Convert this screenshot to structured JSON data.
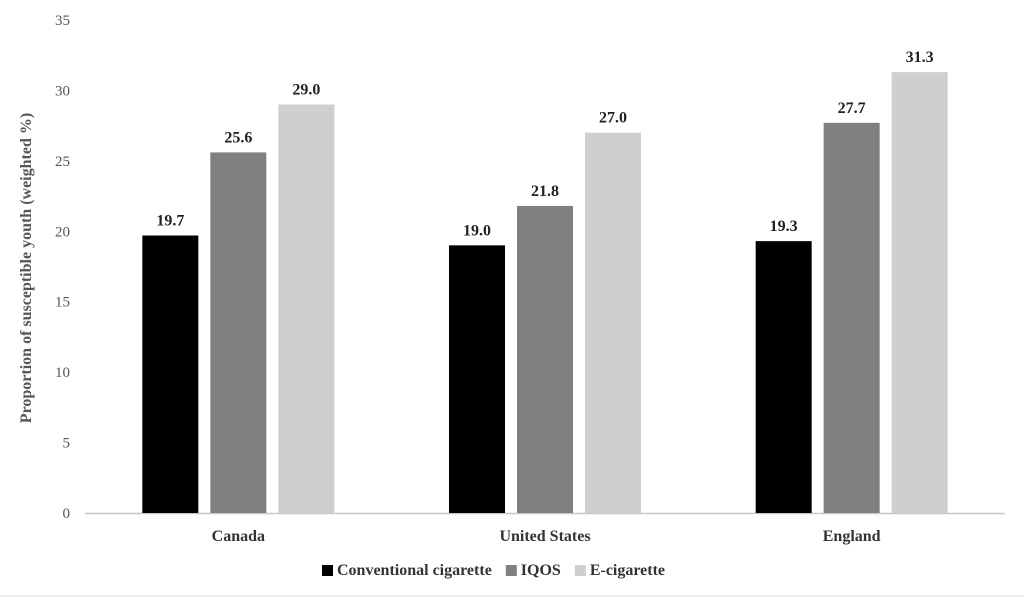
{
  "chart_data": {
    "type": "bar",
    "title": "",
    "xlabel": "",
    "ylabel": "Proportion of susceptible youth (weighted %)",
    "ylim": [
      0,
      35
    ],
    "yticks": [
      0,
      5,
      10,
      15,
      20,
      25,
      30,
      35
    ],
    "grid": false,
    "legend_position": "bottom",
    "categories": [
      "Canada",
      "United States",
      "England"
    ],
    "series": [
      {
        "name": "Conventional cigarette",
        "color": "#000000",
        "values": [
          19.7,
          19.0,
          19.3
        ],
        "labels": [
          "19.7",
          "19.0",
          "19.3"
        ]
      },
      {
        "name": "IQOS",
        "color": "#808080",
        "values": [
          25.6,
          21.8,
          27.7
        ],
        "labels": [
          "25.6",
          "21.8",
          "27.7"
        ]
      },
      {
        "name": "E-cigarette",
        "color": "#d0cece",
        "values": [
          29.0,
          27.0,
          31.3
        ],
        "labels": [
          "29.0",
          "27.0",
          "31.3"
        ]
      }
    ]
  }
}
